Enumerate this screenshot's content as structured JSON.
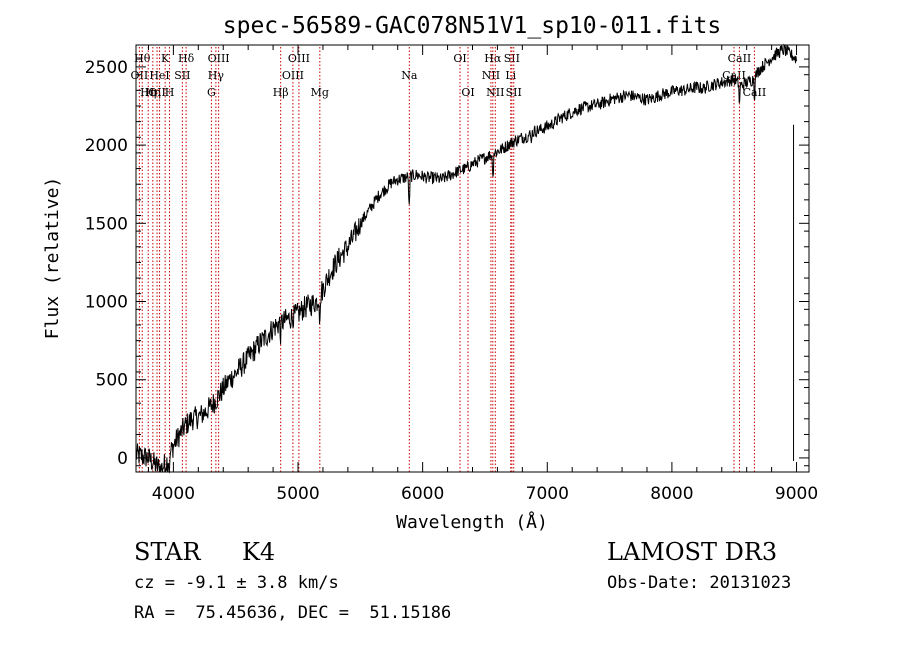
{
  "chart_data": {
    "type": "line",
    "title": "spec-56589-GAC078N51V1_sp10-011.fits",
    "xlabel": "Wavelength (Å)",
    "ylabel": "Flux (relative)",
    "xlim": [
      3700,
      9100
    ],
    "ylim": [
      -90,
      2640
    ],
    "x_ticks": [
      4000,
      5000,
      6000,
      7000,
      8000,
      9000
    ],
    "y_ticks": [
      0,
      500,
      1000,
      1500,
      2000,
      2500
    ],
    "line_color": "#000000",
    "marker_color": "#cc0000",
    "series": [
      {
        "name": "flux",
        "x": [
          3700,
          3750,
          3800,
          3850,
          3900,
          3950,
          4000,
          4050,
          4100,
          4150,
          4200,
          4250,
          4300,
          4350,
          4400,
          4450,
          4500,
          4550,
          4600,
          4650,
          4700,
          4750,
          4800,
          4850,
          4900,
          4950,
          5000,
          5050,
          5100,
          5150,
          5200,
          5250,
          5300,
          5350,
          5400,
          5450,
          5500,
          5550,
          5600,
          5650,
          5700,
          5750,
          5800,
          5850,
          5900,
          5950,
          6000,
          6050,
          6100,
          6150,
          6200,
          6250,
          6300,
          6350,
          6400,
          6450,
          6500,
          6550,
          6600,
          6650,
          6700,
          6750,
          6800,
          6850,
          6900,
          6950,
          7000,
          7050,
          7100,
          7150,
          7200,
          7250,
          7300,
          7350,
          7400,
          7450,
          7500,
          7550,
          7600,
          7650,
          7700,
          7750,
          7800,
          7850,
          7900,
          7950,
          8000,
          8050,
          8100,
          8150,
          8200,
          8250,
          8300,
          8350,
          8400,
          8450,
          8500,
          8550,
          8600,
          8650,
          8700,
          8750,
          8800,
          8850,
          8900,
          8950,
          9000
        ],
        "y": [
          20,
          10,
          0,
          -40,
          -70,
          -20,
          80,
          150,
          210,
          250,
          260,
          290,
          330,
          380,
          440,
          500,
          540,
          590,
          640,
          690,
          740,
          780,
          830,
          860,
          880,
          900,
          920,
          960,
          980,
          1000,
          1080,
          1170,
          1240,
          1300,
          1350,
          1420,
          1500,
          1560,
          1620,
          1680,
          1720,
          1760,
          1780,
          1790,
          1800,
          1810,
          1800,
          1790,
          1790,
          1780,
          1800,
          1820,
          1840,
          1850,
          1880,
          1900,
          1920,
          1940,
          1960,
          1980,
          2010,
          2030,
          2050,
          2060,
          2090,
          2100,
          2120,
          2140,
          2170,
          2190,
          2210,
          2230,
          2240,
          2250,
          2260,
          2270,
          2290,
          2300,
          2310,
          2320,
          2310,
          2300,
          2290,
          2300,
          2320,
          2330,
          2340,
          2350,
          2350,
          2360,
          2370,
          2360,
          2380,
          2390,
          2400,
          2410,
          2420,
          2380,
          2400,
          2420,
          2480,
          2520,
          2560,
          2590,
          2610,
          2580,
          2550
        ]
      }
    ],
    "line_markers": [
      {
        "x": 3727,
        "label": "OII",
        "row": 1
      },
      {
        "x": 3750,
        "label": "Hθ",
        "row": 0
      },
      {
        "x": 3798,
        "label": "Hη",
        "row": 2
      },
      {
        "x": 3835,
        "label": "Hη",
        "row": 2
      },
      {
        "x": 3869,
        "label": "OII",
        "row": 2
      },
      {
        "x": 3889,
        "label": "HeI",
        "row": 1
      },
      {
        "x": 3934,
        "label": "K",
        "row": 0
      },
      {
        "x": 3969,
        "label": "H",
        "row": 2
      },
      {
        "x": 4072,
        "label": "SII",
        "row": 1
      },
      {
        "x": 4102,
        "label": "Hδ",
        "row": 0
      },
      {
        "x": 4305,
        "label": "G",
        "row": 2
      },
      {
        "x": 4341,
        "label": "Hγ",
        "row": 1
      },
      {
        "x": 4363,
        "label": "OIII",
        "row": 0
      },
      {
        "x": 4861,
        "label": "Hβ",
        "row": 2
      },
      {
        "x": 4959,
        "label": "OIII",
        "row": 1
      },
      {
        "x": 5007,
        "label": "OIII",
        "row": 0
      },
      {
        "x": 5175,
        "label": "Mg",
        "row": 2
      },
      {
        "x": 5893,
        "label": "Na",
        "row": 1
      },
      {
        "x": 6300,
        "label": "OI",
        "row": 0
      },
      {
        "x": 6364,
        "label": "OI",
        "row": 2
      },
      {
        "x": 6548,
        "label": "NII",
        "row": 1
      },
      {
        "x": 6563,
        "label": "Hα",
        "row": 0
      },
      {
        "x": 6583,
        "label": "NII",
        "row": 2
      },
      {
        "x": 6707,
        "label": "Li",
        "row": 1
      },
      {
        "x": 6716,
        "label": "SII",
        "row": 0
      },
      {
        "x": 6731,
        "label": "SII",
        "row": 2
      },
      {
        "x": 8498,
        "label": "CaII",
        "row": 1
      },
      {
        "x": 8542,
        "label": "CaII",
        "row": 0
      },
      {
        "x": 8662,
        "label": "CaII",
        "row": 2
      }
    ]
  },
  "info": {
    "object_class": "STAR",
    "subclass": "K4",
    "survey": "LAMOST DR3",
    "redshift": "cz = -9.1 ± 3.8 km/s",
    "obs_date": "Obs-Date: 20131023",
    "coords": "RA =  75.45636, DEC =  51.15186"
  }
}
